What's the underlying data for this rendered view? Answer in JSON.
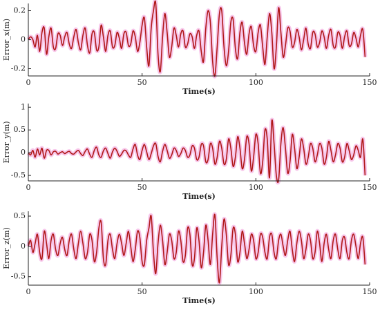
{
  "chart_data": [
    {
      "type": "line",
      "xlabel": "Time(s)",
      "ylabel": "Error_x(m)",
      "color": "#b01818",
      "band_color": "#f7c6ea",
      "xlim": [
        0,
        150
      ],
      "xticks": [
        0,
        50,
        100,
        150
      ],
      "ylim": [
        -0.25,
        0.25
      ],
      "yticks": [
        -0.2,
        0,
        0.2
      ],
      "x": [
        0,
        1,
        2,
        3,
        4,
        5,
        6,
        7,
        8,
        9,
        10,
        11,
        12,
        13,
        14,
        15,
        16,
        17,
        18,
        19,
        20,
        21,
        22,
        23,
        24,
        25,
        26,
        27,
        28,
        29,
        30,
        31,
        32,
        33,
        34,
        35,
        36,
        37,
        38,
        39,
        40,
        41,
        42,
        43,
        44,
        45,
        46,
        47,
        48,
        49,
        50,
        51,
        52,
        53,
        54,
        55,
        56,
        57,
        58,
        59,
        60,
        61,
        62,
        63,
        64,
        65,
        66,
        67,
        68,
        69,
        70,
        71,
        72,
        73,
        74,
        75,
        76,
        77,
        78,
        79,
        80,
        81,
        82,
        83,
        84,
        85,
        86,
        87,
        88,
        89,
        90,
        91,
        92,
        93,
        94,
        95,
        96,
        97,
        98,
        99,
        100,
        101,
        102,
        103,
        104,
        105,
        106,
        107,
        108,
        109,
        110,
        111,
        112,
        113,
        114,
        115,
        116,
        117,
        118,
        119,
        120,
        121,
        122,
        123,
        124,
        125,
        126,
        127,
        128,
        129,
        130,
        131,
        132,
        133,
        134,
        135,
        136,
        137,
        138,
        139,
        140,
        141,
        142,
        143,
        144,
        145,
        146,
        147,
        148
      ],
      "values": [
        0,
        0.02,
        0,
        -0.05,
        0.03,
        -0.08,
        0.05,
        0.08,
        -0.1,
        0.02,
        0.08,
        -0.05,
        -0.06,
        0.04,
        0.03,
        -0.04,
        0.02,
        0.05,
        -0.03,
        -0.06,
        0.02,
        0.07,
        -0.02,
        -0.07,
        0.03,
        0.08,
        -0.04,
        -0.09,
        0.04,
        0.05,
        -0.07,
        -0.05,
        0.1,
        0.02,
        -0.08,
        0.03,
        0.06,
        -0.05,
        -0.04,
        0.05,
        0.01,
        -0.06,
        0.04,
        0.05,
        -0.04,
        -0.03,
        0.06,
        0.02,
        -0.08,
        -0.02,
        0.1,
        0.15,
        -0.05,
        -0.18,
        0.08,
        0.2,
        0.25,
        -0.1,
        -0.22,
        0.02,
        0.18,
        0.05,
        -0.12,
        -0.05,
        0.08,
        0.03,
        -0.05,
        0.04,
        0.06,
        -0.05,
        -0.03,
        0.04,
        0.02,
        -0.06,
        0.03,
        0.06,
        -0.08,
        -0.15,
        0.08,
        0.2,
        0.12,
        -0.15,
        -0.25,
        -0.05,
        0.18,
        0.2,
        -0.05,
        -0.18,
        -0.08,
        0.12,
        0.14,
        -0.06,
        -0.13,
        0.05,
        0.12,
        -0.02,
        -0.1,
        0.04,
        0.09,
        -0.04,
        -0.08,
        0.05,
        0.1,
        -0.05,
        -0.17,
        0.02,
        0.18,
        0.05,
        -0.2,
        -0.05,
        0.22,
        0.05,
        -0.12,
        -0.04,
        0.08,
        0.06,
        -0.05,
        -0.02,
        0.07,
        0.02,
        -0.07,
        0,
        0.08,
        -0.03,
        -0.06,
        0.05,
        0.04,
        -0.05,
        -0.02,
        0.06,
        0.02,
        -0.06,
        0.03,
        0.07,
        -0.04,
        -0.05,
        0.05,
        0.03,
        -0.06,
        0.02,
        0.06,
        -0.04,
        -0.03,
        0.05,
        0.01,
        -0.05,
        0.03,
        0.07,
        -0.12
      ]
    },
    {
      "type": "line",
      "xlabel": "Time(s)",
      "ylabel": "Error_y(m)",
      "color": "#b01818",
      "band_color": "#f7c6ea",
      "xlim": [
        0,
        150
      ],
      "xticks": [
        0,
        50,
        100,
        150
      ],
      "ylim": [
        -0.62,
        1.08
      ],
      "yticks": [
        -0.5,
        0,
        0.5,
        1
      ],
      "x": [
        0,
        1,
        2,
        3,
        4,
        5,
        6,
        7,
        8,
        9,
        10,
        11,
        12,
        13,
        14,
        15,
        16,
        17,
        18,
        19,
        20,
        21,
        22,
        23,
        24,
        25,
        26,
        27,
        28,
        29,
        30,
        31,
        32,
        33,
        34,
        35,
        36,
        37,
        38,
        39,
        40,
        41,
        42,
        43,
        44,
        45,
        46,
        47,
        48,
        49,
        50,
        51,
        52,
        53,
        54,
        55,
        56,
        57,
        58,
        59,
        60,
        61,
        62,
        63,
        64,
        65,
        66,
        67,
        68,
        69,
        70,
        71,
        72,
        73,
        74,
        75,
        76,
        77,
        78,
        79,
        80,
        81,
        82,
        83,
        84,
        85,
        86,
        87,
        88,
        89,
        90,
        91,
        92,
        93,
        94,
        95,
        96,
        97,
        98,
        99,
        100,
        101,
        102,
        103,
        104,
        105,
        106,
        107,
        108,
        109,
        110,
        111,
        112,
        113,
        114,
        115,
        116,
        117,
        118,
        119,
        120,
        121,
        122,
        123,
        124,
        125,
        126,
        127,
        128,
        129,
        130,
        131,
        132,
        133,
        134,
        135,
        136,
        137,
        138,
        139,
        140,
        141,
        142,
        143,
        144,
        145,
        146,
        147,
        148
      ],
      "values": [
        0,
        -0.05,
        0.05,
        -0.1,
        0.08,
        -0.05,
        0.1,
        -0.12,
        0.05,
        0.05,
        -0.05,
        0.02,
        0.03,
        -0.03,
        0,
        0.02,
        -0.02,
        0.01,
        0.03,
        -0.02,
        -0.03,
        0.02,
        0.05,
        -0.02,
        -0.06,
        0.03,
        0.08,
        -0.04,
        -0.1,
        0.05,
        0.12,
        -0.05,
        -0.1,
        0.04,
        0.1,
        -0.02,
        -0.12,
        0.02,
        0.1,
        0.03,
        -0.08,
        -0.03,
        0.05,
        0.04,
        -0.05,
        -0.1,
        0.08,
        0.18,
        -0.05,
        -0.15,
        0.05,
        0.18,
        0.02,
        -0.15,
        -0.02,
        0.15,
        0.2,
        -0.08,
        -0.2,
        0.03,
        0.18,
        0.05,
        -0.12,
        -0.05,
        0.1,
        0.05,
        -0.08,
        -0.02,
        0.1,
        0.05,
        -0.1,
        -0.05,
        0.15,
        0.1,
        -0.15,
        -0.1,
        0.18,
        0.15,
        -0.2,
        -0.15,
        0.2,
        0.1,
        -0.25,
        -0.1,
        0.25,
        0.1,
        -0.25,
        -0.15,
        0.3,
        0.1,
        -0.3,
        -0.1,
        0.35,
        0.1,
        -0.35,
        -0.15,
        0.35,
        0.2,
        -0.4,
        -0.1,
        0.4,
        0.2,
        -0.45,
        -0.2,
        0.5,
        0.3,
        -0.55,
        0.7,
        0.2,
        -0.5,
        -0.6,
        0.2,
        0.55,
        0.1,
        -0.45,
        -0.2,
        0.4,
        0.1,
        -0.35,
        -0.1,
        0.3,
        0.1,
        -0.25,
        -0.1,
        0.2,
        0.1,
        -0.2,
        -0.05,
        0.2,
        0.1,
        -0.25,
        -0.1,
        0.25,
        0.05,
        -0.2,
        -0.05,
        0.2,
        0.1,
        -0.2,
        -0.1,
        0.2,
        0.05,
        -0.15,
        -0.05,
        0.15,
        0.05,
        -0.1,
        0.3,
        -0.5
      ]
    },
    {
      "type": "line",
      "xlabel": "Time(s)",
      "ylabel": "Error_z(m)",
      "color": "#b01818",
      "band_color": "#f7c6ea",
      "xlim": [
        0,
        150
      ],
      "xticks": [
        0,
        50,
        100,
        150
      ],
      "ylim": [
        -0.64,
        0.58
      ],
      "yticks": [
        -0.5,
        0,
        0.5
      ],
      "x": [
        0,
        1,
        2,
        3,
        4,
        5,
        6,
        7,
        8,
        9,
        10,
        11,
        12,
        13,
        14,
        15,
        16,
        17,
        18,
        19,
        20,
        21,
        22,
        23,
        24,
        25,
        26,
        27,
        28,
        29,
        30,
        31,
        32,
        33,
        34,
        35,
        36,
        37,
        38,
        39,
        40,
        41,
        42,
        43,
        44,
        45,
        46,
        47,
        48,
        49,
        50,
        51,
        52,
        53,
        54,
        55,
        56,
        57,
        58,
        59,
        60,
        61,
        62,
        63,
        64,
        65,
        66,
        67,
        68,
        69,
        70,
        71,
        72,
        73,
        74,
        75,
        76,
        77,
        78,
        79,
        80,
        81,
        82,
        83,
        84,
        85,
        86,
        87,
        88,
        89,
        90,
        91,
        92,
        93,
        94,
        95,
        96,
        97,
        98,
        99,
        100,
        101,
        102,
        103,
        104,
        105,
        106,
        107,
        108,
        109,
        110,
        111,
        112,
        113,
        114,
        115,
        116,
        117,
        118,
        119,
        120,
        121,
        122,
        123,
        124,
        125,
        126,
        127,
        128,
        129,
        130,
        131,
        132,
        133,
        134,
        135,
        136,
        137,
        138,
        139,
        140,
        141,
        142,
        143,
        144,
        145,
        146,
        147,
        148
      ],
      "values": [
        0,
        0.1,
        -0.1,
        0.05,
        0.2,
        -0.1,
        -0.2,
        0.25,
        0.05,
        -0.2,
        0.1,
        0.2,
        -0.05,
        -0.15,
        0.05,
        0.15,
        -0.05,
        -0.15,
        0.1,
        0.2,
        -0.05,
        -0.2,
        0.05,
        0.25,
        0.05,
        -0.2,
        -0.1,
        0.2,
        0.1,
        -0.25,
        -0.1,
        0.3,
        0.4,
        -0.2,
        -0.3,
        0.1,
        0.2,
        -0.05,
        -0.2,
        0.05,
        0.2,
        0.05,
        -0.15,
        0.05,
        0.25,
        0,
        -0.25,
        -0.05,
        0.25,
        0.15,
        -0.25,
        -0.3,
        0.1,
        0.3,
        0.5,
        -0.1,
        -0.45,
        0.05,
        0.35,
        0.1,
        -0.3,
        -0.1,
        0.2,
        0.1,
        -0.2,
        -0.1,
        0.25,
        0.1,
        -0.25,
        -0.15,
        0.3,
        0.2,
        -0.3,
        -0.2,
        0.3,
        0.1,
        -0.35,
        -0.1,
        0.35,
        0.1,
        -0.3,
        0.2,
        0.52,
        -0.2,
        -0.6,
        0,
        0.45,
        0.2,
        -0.3,
        -0.15,
        0.3,
        0.2,
        -0.25,
        -0.1,
        0.25,
        0.05,
        -0.2,
        -0.05,
        0.2,
        0.1,
        -0.2,
        -0.1,
        0.2,
        0.15,
        -0.1,
        -0.2,
        0.15,
        0.2,
        -0.1,
        -0.2,
        0.1,
        0.2,
        0,
        -0.15,
        0.1,
        0.25,
        -0.05,
        -0.25,
        0.05,
        0.25,
        0.1,
        -0.2,
        -0.05,
        0.2,
        0.1,
        -0.2,
        -0.1,
        0.25,
        0.05,
        -0.25,
        0.05,
        0.2,
        -0.05,
        -0.2,
        0.1,
        0.2,
        -0.05,
        -0.2,
        0.1,
        0.15,
        -0.1,
        -0.2,
        0.1,
        0.2,
        0,
        -0.2,
        0.05,
        0.15,
        -0.3
      ]
    }
  ]
}
